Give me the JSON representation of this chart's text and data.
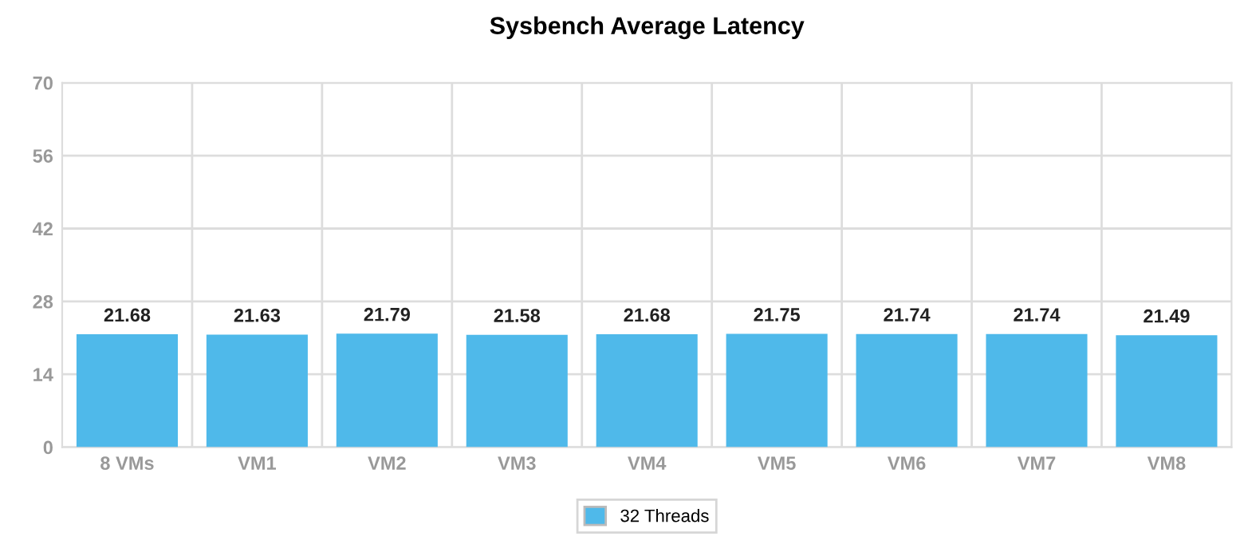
{
  "chart_data": {
    "type": "bar",
    "title": "Sysbench Average Latency",
    "categories": [
      "8 VMs",
      "VM1",
      "VM2",
      "VM3",
      "VM4",
      "VM5",
      "VM6",
      "VM7",
      "VM8"
    ],
    "series": [
      {
        "name": "32 Threads",
        "color": "#4fb9ea",
        "values": [
          21.68,
          21.63,
          21.79,
          21.58,
          21.68,
          21.75,
          21.74,
          21.74,
          21.49
        ]
      }
    ],
    "ylim": [
      0,
      70
    ],
    "yticks": [
      0,
      14,
      28,
      42,
      56,
      70
    ],
    "grid": true,
    "legend": "bottom",
    "data_labels": true
  }
}
